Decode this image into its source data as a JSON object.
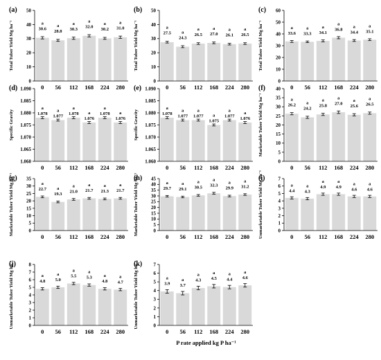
{
  "x_axis_title": "P rate applied kg P ha⁻¹",
  "chart_data": [
    {
      "id": "a",
      "panel_label": "(a)",
      "type": "bar",
      "categories": [
        "0",
        "56",
        "112",
        "168",
        "224",
        "280"
      ],
      "values": [
        30.6,
        28.8,
        30.3,
        32.0,
        30.2,
        31.0
      ],
      "value_labels": [
        "30.6",
        "28.8",
        "30.3",
        "32.0",
        "30.2",
        "31.0"
      ],
      "errors": [
        0.8,
        0.7,
        0.8,
        0.8,
        0.7,
        0.8
      ],
      "letters": [
        "a",
        "a",
        "a",
        "a",
        "a",
        "a"
      ],
      "ylabel": "Total Tuber Yield Mg ha⁻¹",
      "ylim": [
        0,
        50
      ],
      "yticks": [
        "0",
        "10",
        "20",
        "30",
        "40",
        "50"
      ],
      "xlabel": ""
    },
    {
      "id": "b",
      "panel_label": "(b)",
      "type": "bar",
      "categories": [
        "0",
        "56",
        "112",
        "168",
        "224",
        "280"
      ],
      "values": [
        27.5,
        24.3,
        26.5,
        27.0,
        26.1,
        26.5
      ],
      "value_labels": [
        "27.5",
        "24.3",
        "26.5",
        "27.0",
        "26.1",
        "26.5"
      ],
      "errors": [
        0.6,
        0.7,
        0.6,
        0.6,
        0.6,
        0.6
      ],
      "letters": [
        "a",
        "a",
        "a",
        "a",
        "a",
        "a"
      ],
      "ylabel": "Total Tuber Yield Mg ha⁻¹",
      "ylim": [
        0,
        50
      ],
      "yticks": [
        "0",
        "10",
        "20",
        "30",
        "40",
        "50"
      ],
      "xlabel": ""
    },
    {
      "id": "c",
      "panel_label": "(c)",
      "type": "bar",
      "categories": [
        "0",
        "56",
        "112",
        "168",
        "224",
        "280"
      ],
      "values": [
        33.6,
        33.3,
        34.1,
        36.8,
        34.4,
        35.1
      ],
      "value_labels": [
        "33.6",
        "33.3",
        "34.1",
        "36.8",
        "34.4",
        "35.1"
      ],
      "errors": [
        0.8,
        0.7,
        0.8,
        0.9,
        0.8,
        0.8
      ],
      "letters": [
        "a",
        "a",
        "a",
        "a",
        "a",
        "a"
      ],
      "ylabel": "Total Tuber Yield Mg ha⁻¹",
      "ylim": [
        0,
        60
      ],
      "yticks": [
        "0",
        "10",
        "20",
        "30",
        "40",
        "50",
        "60"
      ],
      "xlabel": ""
    },
    {
      "id": "d",
      "panel_label": "(d)",
      "type": "bar",
      "categories": [
        "0",
        "56",
        "112",
        "168",
        "224",
        "280"
      ],
      "values": [
        1.078,
        1.077,
        1.078,
        1.076,
        1.078,
        1.076
      ],
      "value_labels": [
        "1.078",
        "1.077",
        "1.078",
        "1.076",
        "1.078",
        "1.076"
      ],
      "errors": [
        0.0004,
        0.0004,
        0.0004,
        0.0004,
        0.0004,
        0.0004
      ],
      "letters": [
        "a",
        "a",
        "a",
        "a",
        "a",
        "a"
      ],
      "ylabel": "Specific Gravity",
      "ylim": [
        1.06,
        1.09
      ],
      "yticks": [
        "1.060",
        "1.065",
        "1.070",
        "1.075",
        "1.080",
        "1.085",
        "1.090"
      ],
      "xlabel": ""
    },
    {
      "id": "e",
      "panel_label": "(e)",
      "type": "bar",
      "categories": [
        "0",
        "56",
        "112",
        "168",
        "224",
        "280"
      ],
      "values": [
        1.078,
        1.077,
        1.077,
        1.075,
        1.077,
        1.076
      ],
      "value_labels": [
        "1.078",
        "1.077",
        "1.077",
        "1.075",
        "1.077",
        "1.076"
      ],
      "errors": [
        0.0004,
        0.0004,
        0.0004,
        0.0004,
        0.0004,
        0.0004
      ],
      "letters": [
        "a",
        "a",
        "a",
        "a",
        "a",
        "a"
      ],
      "ylabel": "Specific Gravity",
      "ylim": [
        1.06,
        1.09
      ],
      "yticks": [
        "1.060",
        "1.065",
        "1.070",
        "1.075",
        "1.080",
        "1.085",
        "1.090"
      ],
      "xlabel": ""
    },
    {
      "id": "f",
      "panel_label": "(f)",
      "type": "bar",
      "categories": [
        "0",
        "56",
        "112",
        "168",
        "224",
        "280"
      ],
      "values": [
        26.2,
        24.2,
        25.8,
        27.0,
        25.6,
        26.5
      ],
      "value_labels": [
        "26.2",
        "24.2",
        "25.8",
        "27.0",
        "25.6",
        "26.5"
      ],
      "errors": [
        0.6,
        0.6,
        0.6,
        0.7,
        0.6,
        0.6
      ],
      "letters": [
        "a",
        "a",
        "a",
        "a",
        "a",
        "a"
      ],
      "ylabel": "Marketable Tuber Yield Mg ha⁻¹",
      "ylim": [
        0,
        40
      ],
      "yticks": [
        "0",
        "5",
        "10",
        "15",
        "20",
        "25",
        "30",
        "35",
        "40"
      ],
      "xlabel": ""
    },
    {
      "id": "g",
      "panel_label": "(g)",
      "type": "bar",
      "categories": [
        "0",
        "56",
        "112",
        "168",
        "224",
        "280"
      ],
      "values": [
        22.7,
        19.3,
        21.0,
        21.7,
        21.3,
        21.7
      ],
      "value_labels": [
        "22.7",
        "19.3",
        "21.0",
        "21.7",
        "21.3",
        "21.7"
      ],
      "errors": [
        0.6,
        0.6,
        0.6,
        0.6,
        0.6,
        0.6
      ],
      "letters": [
        "a",
        "a",
        "a",
        "a",
        "a",
        "a"
      ],
      "ylabel": "Marketable Tuber Yield Mg ha⁻¹",
      "ylim": [
        0,
        35
      ],
      "yticks": [
        "0",
        "5",
        "10",
        "15",
        "20",
        "25",
        "30",
        "35"
      ],
      "xlabel": ""
    },
    {
      "id": "h",
      "panel_label": "(h)",
      "type": "bar",
      "categories": [
        "0",
        "56",
        "112",
        "168",
        "224",
        "280"
      ],
      "values": [
        29.7,
        29.1,
        30.5,
        32.3,
        29.9,
        31.2
      ],
      "value_labels": [
        "29.7",
        "29.1",
        "30.5",
        "32.3",
        "29.9",
        "31.2"
      ],
      "errors": [
        0.7,
        0.7,
        0.7,
        0.8,
        0.7,
        0.7
      ],
      "letters": [
        "a",
        "a",
        "a",
        "a",
        "a",
        "a"
      ],
      "ylabel": "Marketable Tuber Yield Mg ha⁻¹",
      "ylim": [
        0,
        45
      ],
      "yticks": [
        "0",
        "5",
        "10",
        "15",
        "20",
        "25",
        "30",
        "35",
        "40",
        "45"
      ],
      "xlabel": ""
    },
    {
      "id": "i",
      "panel_label": "(i)",
      "type": "bar",
      "categories": [
        "0",
        "56",
        "112",
        "168",
        "224",
        "280"
      ],
      "values": [
        4.4,
        4.3,
        4.9,
        4.9,
        4.6,
        4.6
      ],
      "value_labels": [
        "4.4",
        "4.3",
        "4.9",
        "4.9",
        "4.6",
        "4.6"
      ],
      "errors": [
        0.15,
        0.15,
        0.15,
        0.15,
        0.15,
        0.15
      ],
      "letters": [
        "a",
        "a",
        "a",
        "a",
        "a",
        "a"
      ],
      "ylabel": "Unmarketable Tuber Yield Mg ha⁻¹",
      "ylim": [
        0,
        7
      ],
      "yticks": [
        "0",
        "1",
        "2",
        "3",
        "4",
        "5",
        "6",
        "7"
      ],
      "xlabel": ""
    },
    {
      "id": "j",
      "panel_label": "(j)",
      "type": "bar",
      "categories": [
        "0",
        "56",
        "112",
        "168",
        "224",
        "280"
      ],
      "values": [
        4.8,
        5.0,
        5.5,
        5.3,
        4.8,
        4.7
      ],
      "value_labels": [
        "4.8",
        "5.0",
        "5.5",
        "5.3",
        "4.8",
        "4.7"
      ],
      "errors": [
        0.15,
        0.15,
        0.15,
        0.15,
        0.15,
        0.15
      ],
      "letters": [
        "a",
        "a",
        "a",
        "a",
        "a",
        "a"
      ],
      "ylabel": "Unmarketable Tuber Yield Mg ha⁻¹",
      "ylim": [
        0,
        8
      ],
      "yticks": [
        "0",
        "1",
        "2",
        "3",
        "4",
        "5",
        "6",
        "7",
        "8"
      ],
      "xlabel": ""
    },
    {
      "id": "k",
      "panel_label": "(k)",
      "type": "bar",
      "categories": [
        "0",
        "56",
        "112",
        "168",
        "224",
        "280"
      ],
      "values": [
        3.9,
        3.7,
        4.3,
        4.5,
        4.4,
        4.6
      ],
      "value_labels": [
        "3.9",
        "3.7",
        "4.3",
        "4.5",
        "4.4",
        "4.6"
      ],
      "errors": [
        0.2,
        0.2,
        0.2,
        0.2,
        0.2,
        0.2
      ],
      "letters": [
        "a",
        "a",
        "a",
        "a",
        "a",
        "a"
      ],
      "ylabel": "Unmarketable Tuber Yield Mg ha⁻¹",
      "ylim": [
        0,
        7
      ],
      "yticks": [
        "0",
        "1",
        "2",
        "3",
        "4",
        "5",
        "6",
        "7"
      ],
      "xlabel": "P rate applied kg P ha⁻¹"
    }
  ]
}
